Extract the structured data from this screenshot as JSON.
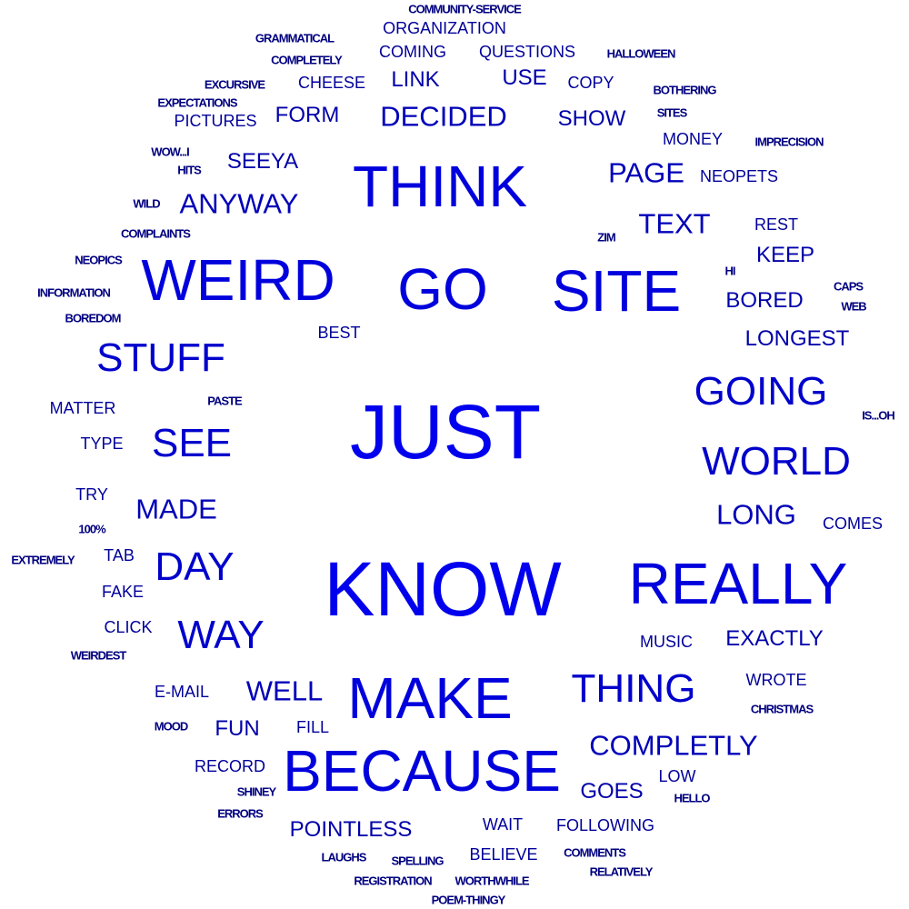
{
  "words": [
    {
      "id": "just",
      "text": "JUST",
      "w": 1
    },
    {
      "id": "know",
      "text": "KNOW",
      "w": 1
    },
    {
      "id": "think",
      "text": "THINK",
      "w": 2
    },
    {
      "id": "go",
      "text": "GO",
      "w": 2
    },
    {
      "id": "site",
      "text": "SITE",
      "w": 2
    },
    {
      "id": "weird",
      "text": "WEIRD",
      "w": 2
    },
    {
      "id": "make",
      "text": "MAKE",
      "w": 2
    },
    {
      "id": "really",
      "text": "REALLY",
      "w": 2
    },
    {
      "id": "because",
      "text": "BECAUSE",
      "w": 2
    },
    {
      "id": "thing",
      "text": "THING",
      "w": 3
    },
    {
      "id": "see",
      "text": "SEE",
      "w": 3
    },
    {
      "id": "world",
      "text": "WORLD",
      "w": 3
    },
    {
      "id": "stuff",
      "text": "STUFF",
      "w": 3
    },
    {
      "id": "going",
      "text": "GOING",
      "w": 3
    },
    {
      "id": "day",
      "text": "DAY",
      "w": 3
    },
    {
      "id": "way",
      "text": "WAY",
      "w": 3
    },
    {
      "id": "decided",
      "text": "DECIDED",
      "w": 4
    },
    {
      "id": "anyway",
      "text": "ANYWAY",
      "w": 4
    },
    {
      "id": "text",
      "text": "TEXT",
      "w": 4
    },
    {
      "id": "made",
      "text": "MADE",
      "w": 4
    },
    {
      "id": "page",
      "text": "PAGE",
      "w": 4
    },
    {
      "id": "well",
      "text": "WELL",
      "w": 4
    },
    {
      "id": "completly",
      "text": "COMPLETLY",
      "w": 4
    },
    {
      "id": "long",
      "text": "LONG",
      "w": 4
    },
    {
      "id": "exactly",
      "text": "EXACTLY",
      "w": 5
    },
    {
      "id": "longest",
      "text": "LONGEST",
      "w": 5
    },
    {
      "id": "bored",
      "text": "BORED",
      "w": 5
    },
    {
      "id": "show",
      "text": "SHOW",
      "w": 5
    },
    {
      "id": "form",
      "text": "FORM",
      "w": 5
    },
    {
      "id": "seeya",
      "text": "SEEYA",
      "w": 5
    },
    {
      "id": "pointless",
      "text": "POINTLESS",
      "w": 5
    },
    {
      "id": "goes",
      "text": "GOES",
      "w": 5
    },
    {
      "id": "fun",
      "text": "FUN",
      "w": 5
    },
    {
      "id": "keep",
      "text": "KEEP",
      "w": 5
    },
    {
      "id": "link",
      "text": "LINK",
      "w": 5
    },
    {
      "id": "use",
      "text": "USE",
      "w": 5
    },
    {
      "id": "coming",
      "text": "COMING",
      "w": 6
    },
    {
      "id": "questions",
      "text": "QUESTIONS",
      "w": 6
    },
    {
      "id": "cheese",
      "text": "CHEESE",
      "w": 6
    },
    {
      "id": "copy",
      "text": "COPY",
      "w": 6
    },
    {
      "id": "money",
      "text": "MONEY",
      "w": 6
    },
    {
      "id": "wait",
      "text": "WAIT",
      "w": 6
    },
    {
      "id": "following",
      "text": "FOLLOWING",
      "w": 6
    },
    {
      "id": "e-mail",
      "text": "E-MAIL",
      "w": 6
    },
    {
      "id": "music",
      "text": "MUSIC",
      "w": 6
    },
    {
      "id": "wrote",
      "text": "WROTE",
      "w": 6
    },
    {
      "id": "best",
      "text": "BEST",
      "w": 6
    },
    {
      "id": "rest",
      "text": "REST",
      "w": 6
    },
    {
      "id": "fake",
      "text": "FAKE",
      "w": 6
    },
    {
      "id": "tab",
      "text": "TAB",
      "w": 6
    },
    {
      "id": "matter",
      "text": "MATTER",
      "w": 6
    },
    {
      "id": "believe",
      "text": "BELIEVE",
      "w": 6
    },
    {
      "id": "record",
      "text": "RECORD",
      "w": 6
    },
    {
      "id": "comes",
      "text": "COMES",
      "w": 6
    },
    {
      "id": "pictures",
      "text": "PICTURES",
      "w": 6
    },
    {
      "id": "organization",
      "text": "ORGANIZATION",
      "w": 6
    },
    {
      "id": "type",
      "text": "TYPE",
      "w": 6
    },
    {
      "id": "fill",
      "text": "FILL",
      "w": 6
    },
    {
      "id": "low",
      "text": "LOW",
      "w": 6
    },
    {
      "id": "try",
      "text": "TRY",
      "w": 6
    },
    {
      "id": "click",
      "text": "CLICK",
      "w": 6
    },
    {
      "id": "neopets",
      "text": "NEOPETS",
      "w": 6
    },
    {
      "id": "community-service",
      "text": "COMMUNITY-SERVICE",
      "w": 7
    },
    {
      "id": "grammatical",
      "text": "GRAMMATICAL",
      "w": 7
    },
    {
      "id": "completely",
      "text": "COMPLETELY",
      "w": 7
    },
    {
      "id": "halloween",
      "text": "HALLOWEEN",
      "w": 7
    },
    {
      "id": "excursive",
      "text": "EXCURSIVE",
      "w": 7
    },
    {
      "id": "bothering",
      "text": "BOTHERING",
      "w": 7
    },
    {
      "id": "expectations",
      "text": "EXPECTATIONS",
      "w": 7
    },
    {
      "id": "sites",
      "text": "SITES",
      "w": 7
    },
    {
      "id": "imprecision",
      "text": "IMPRECISION",
      "w": 7
    },
    {
      "id": "wow-i",
      "text": "WOW...I",
      "w": 7
    },
    {
      "id": "hits",
      "text": "HITS",
      "w": 7
    },
    {
      "id": "wild",
      "text": "WILD",
      "w": 7
    },
    {
      "id": "complaints",
      "text": "COMPLAINTS",
      "w": 7
    },
    {
      "id": "zim",
      "text": "ZIM",
      "w": 7
    },
    {
      "id": "neopics",
      "text": "NEOPICS",
      "w": 7
    },
    {
      "id": "hi",
      "text": "HI",
      "w": 7
    },
    {
      "id": "caps",
      "text": "CAPS",
      "w": 7
    },
    {
      "id": "information",
      "text": "INFORMATION",
      "w": 7
    },
    {
      "id": "web",
      "text": "WEB",
      "w": 7
    },
    {
      "id": "boredom",
      "text": "BOREDOM",
      "w": 7
    },
    {
      "id": "paste",
      "text": "PASTE",
      "w": 7
    },
    {
      "id": "is-oh",
      "text": "IS...OH",
      "w": 7
    },
    {
      "id": "100-percent",
      "text": "100%",
      "w": 7
    },
    {
      "id": "extremely",
      "text": "EXTREMELY",
      "w": 7
    },
    {
      "id": "weirdest",
      "text": "WEIRDEST",
      "w": 7
    },
    {
      "id": "christmas",
      "text": "CHRISTMAS",
      "w": 7
    },
    {
      "id": "mood",
      "text": "MOOD",
      "w": 7
    },
    {
      "id": "hello",
      "text": "HELLO",
      "w": 7
    },
    {
      "id": "shiney",
      "text": "SHINEY",
      "w": 7
    },
    {
      "id": "errors",
      "text": "ERRORS",
      "w": 7
    },
    {
      "id": "laughs",
      "text": "LAUGHS",
      "w": 7
    },
    {
      "id": "spelling",
      "text": "SPELLING",
      "w": 7
    },
    {
      "id": "comments",
      "text": "COMMENTS",
      "w": 7
    },
    {
      "id": "registration",
      "text": "REGISTRATION",
      "w": 7
    },
    {
      "id": "worthwhile",
      "text": "WORTHWHILE",
      "w": 7
    },
    {
      "id": "relatively",
      "text": "RELATIVELY",
      "w": 7
    },
    {
      "id": "poem-thingy",
      "text": "POEM-THINGY",
      "w": 7
    }
  ]
}
